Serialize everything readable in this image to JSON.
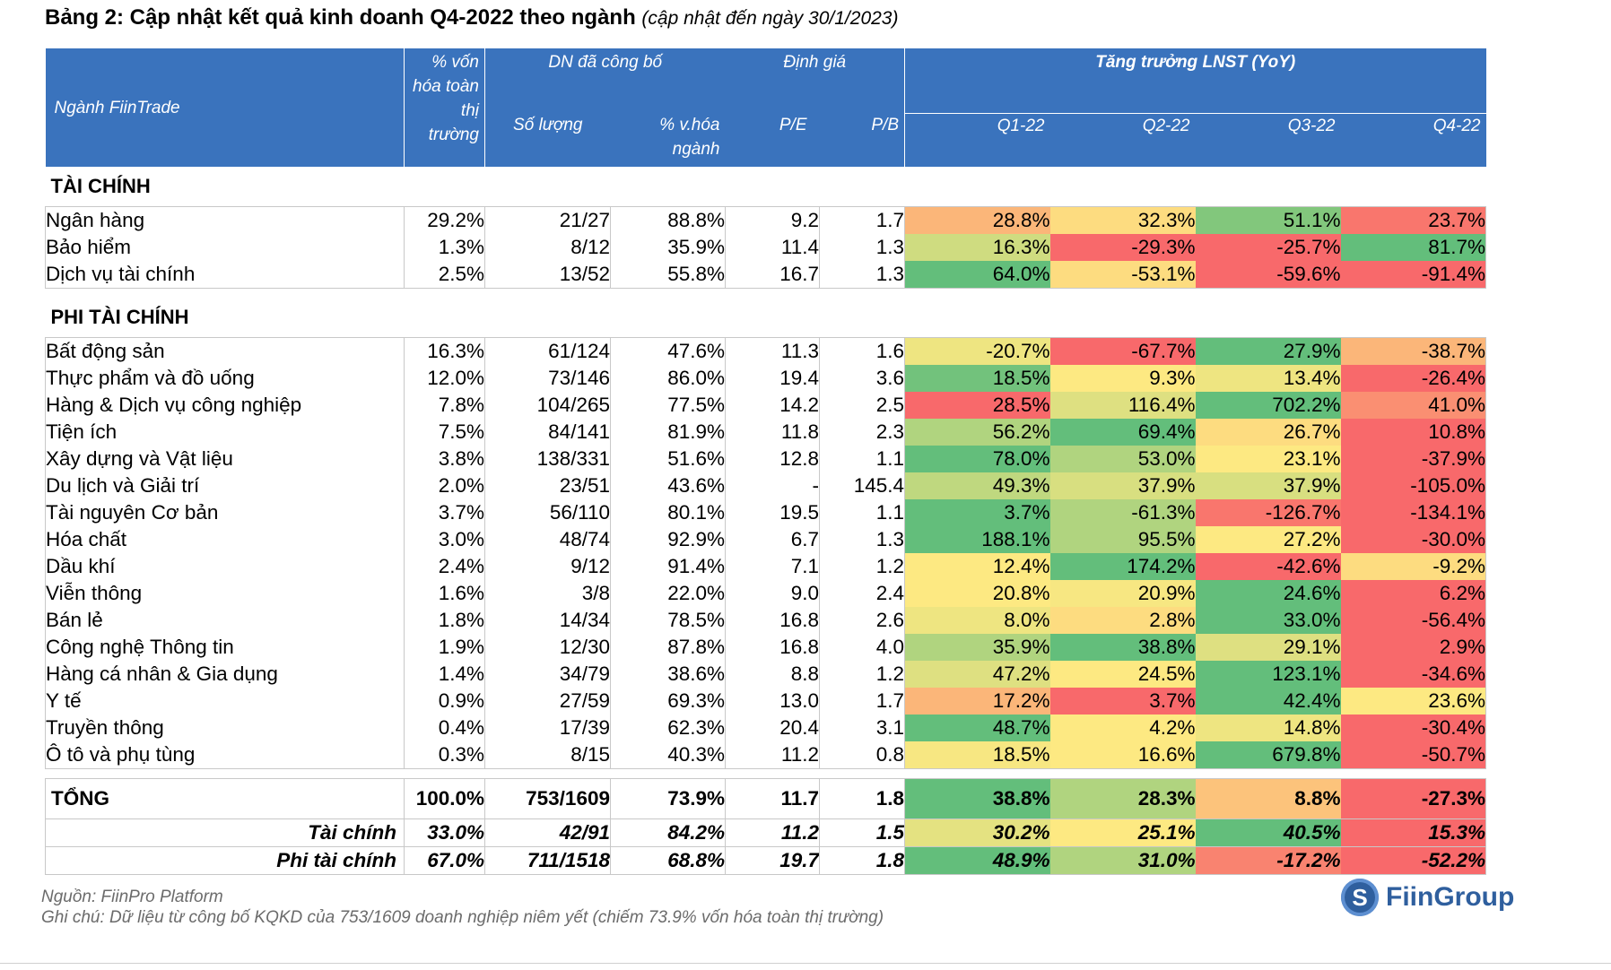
{
  "title": {
    "main": "Bảng 2: Cập nhật kết quả kinh doanh Q4-2022 theo ngành",
    "sub": "(cập nhật đến ngày 30/1/2023)"
  },
  "header": {
    "industry": "Ngành FiinTrade",
    "mcap": "% vốn hóa toàn thị trường",
    "reported": "DN đã công bố",
    "valuation": "Định giá",
    "growth": "Tăng trưởng LNST (YoY)",
    "count": "Số lượng",
    "pct": "% v.hóa ngành",
    "pe": "P/E",
    "pb": "P/B",
    "q1": "Q1-22",
    "q2": "Q2-22",
    "q3": "Q3-22",
    "q4": "Q4-22"
  },
  "colors": {
    "header_bg": "#3a73bd",
    "green": "#63be7b",
    "yellow": "#fde982",
    "red": "#f8696b"
  },
  "sections": [
    {
      "title": "TÀI CHÍNH",
      "rows": [
        {
          "name": "Ngân hàng",
          "mcap": "29.2%",
          "count": "21/27",
          "pct": "88.8%",
          "pe": "9.2",
          "pb": "1.7",
          "q": [
            "28.8%",
            "32.3%",
            "51.1%",
            "23.7%"
          ],
          "qs": [
            0.3,
            0.45,
            0.9,
            0.05
          ]
        },
        {
          "name": "Bảo hiểm",
          "mcap": "1.3%",
          "count": "8/12",
          "pct": "35.9%",
          "pe": "11.4",
          "pb": "1.3",
          "q": [
            "16.3%",
            "-29.3%",
            "-25.7%",
            "81.7%"
          ],
          "qs": [
            0.65,
            0.0,
            0.0,
            1.0
          ]
        },
        {
          "name": "Dịch vụ tài chính",
          "mcap": "2.5%",
          "count": "13/52",
          "pct": "55.8%",
          "pe": "16.7",
          "pb": "1.3",
          "q": [
            "64.0%",
            "-53.1%",
            "-59.6%",
            "-91.4%"
          ],
          "qs": [
            1.0,
            0.45,
            0.0,
            0.0
          ]
        }
      ]
    },
    {
      "title": "PHI TÀI CHÍNH",
      "rows": [
        {
          "name": "Bất động sản",
          "mcap": "16.3%",
          "count": "61/124",
          "pct": "47.6%",
          "pe": "11.3",
          "pb": "1.6",
          "q": [
            "-20.7%",
            "-67.7%",
            "27.9%",
            "-38.7%"
          ],
          "qs": [
            0.55,
            0.0,
            1.0,
            0.3
          ]
        },
        {
          "name": "Thực phẩm và đồ uống",
          "mcap": "12.0%",
          "count": "73/146",
          "pct": "86.0%",
          "pe": "19.4",
          "pb": "3.6",
          "q": [
            "18.5%",
            "9.3%",
            "13.4%",
            "-26.4%"
          ],
          "qs": [
            0.95,
            0.5,
            0.55,
            0.0
          ]
        },
        {
          "name": "Hàng & Dịch vụ công nghiệp",
          "mcap": "7.8%",
          "count": "104/265",
          "pct": "77.5%",
          "pe": "14.2",
          "pb": "2.5",
          "q": [
            "28.5%",
            "116.4%",
            "702.2%",
            "41.0%"
          ],
          "qs": [
            0.0,
            0.6,
            1.0,
            0.15
          ]
        },
        {
          "name": "Tiện ích",
          "mcap": "7.5%",
          "count": "84/141",
          "pct": "81.9%",
          "pe": "11.8",
          "pb": "2.3",
          "q": [
            "56.2%",
            "69.4%",
            "26.7%",
            "10.8%"
          ],
          "qs": [
            0.75,
            1.0,
            0.45,
            0.0
          ]
        },
        {
          "name": "Xây dựng và Vật liệu",
          "mcap": "3.8%",
          "count": "138/331",
          "pct": "51.6%",
          "pe": "12.8",
          "pb": "1.1",
          "q": [
            "78.0%",
            "53.0%",
            "23.1%",
            "-37.9%"
          ],
          "qs": [
            1.0,
            0.75,
            0.5,
            0.0
          ]
        },
        {
          "name": "Du lịch và Giải trí",
          "mcap": "2.0%",
          "count": "23/51",
          "pct": "43.6%",
          "pe": "-",
          "pb": "145.4",
          "q": [
            "49.3%",
            "37.9%",
            "37.9%",
            "-105.0%"
          ],
          "qs": [
            0.7,
            0.62,
            0.62,
            0.0
          ]
        },
        {
          "name": "Tài nguyên Cơ bản",
          "mcap": "3.7%",
          "count": "56/110",
          "pct": "80.1%",
          "pe": "19.5",
          "pb": "1.1",
          "q": [
            "3.7%",
            "-61.3%",
            "-126.7%",
            "-134.1%"
          ],
          "qs": [
            1.0,
            0.75,
            0.05,
            0.0
          ]
        },
        {
          "name": "Hóa chất",
          "mcap": "3.0%",
          "count": "48/74",
          "pct": "92.9%",
          "pe": "6.7",
          "pb": "1.3",
          "q": [
            "188.1%",
            "95.5%",
            "27.2%",
            "-30.0%"
          ],
          "qs": [
            1.0,
            0.75,
            0.5,
            0.0
          ]
        },
        {
          "name": "Dầu khí",
          "mcap": "2.4%",
          "count": "9/12",
          "pct": "91.4%",
          "pe": "7.1",
          "pb": "1.2",
          "q": [
            "12.4%",
            "174.2%",
            "-42.6%",
            "-9.2%"
          ],
          "qs": [
            0.5,
            1.0,
            0.0,
            0.45
          ]
        },
        {
          "name": "Viễn thông",
          "mcap": "1.6%",
          "count": "3/8",
          "pct": "22.0%",
          "pe": "9.0",
          "pb": "2.4",
          "q": [
            "20.8%",
            "20.9%",
            "24.6%",
            "6.2%"
          ],
          "qs": [
            0.5,
            0.52,
            1.0,
            0.0
          ]
        },
        {
          "name": "Bán lẻ",
          "mcap": "1.8%",
          "count": "14/34",
          "pct": "78.5%",
          "pe": "16.8",
          "pb": "2.6",
          "q": [
            "8.0%",
            "2.8%",
            "33.0%",
            "-56.4%"
          ],
          "qs": [
            0.55,
            0.45,
            1.0,
            0.0
          ]
        },
        {
          "name": "Công nghệ Thông tin",
          "mcap": "1.9%",
          "count": "12/30",
          "pct": "87.8%",
          "pe": "16.8",
          "pb": "4.0",
          "q": [
            "35.9%",
            "38.8%",
            "29.1%",
            "2.9%"
          ],
          "qs": [
            0.75,
            1.0,
            0.6,
            0.0
          ]
        },
        {
          "name": "Hàng cá nhân & Gia dụng",
          "mcap": "1.4%",
          "count": "34/79",
          "pct": "38.6%",
          "pe": "8.8",
          "pb": "1.2",
          "q": [
            "47.2%",
            "24.5%",
            "123.1%",
            "-34.6%"
          ],
          "qs": [
            0.6,
            0.5,
            1.0,
            0.0
          ]
        },
        {
          "name": "Y tế",
          "mcap": "0.9%",
          "count": "27/59",
          "pct": "69.3%",
          "pe": "13.0",
          "pb": "1.7",
          "q": [
            "17.2%",
            "3.7%",
            "42.4%",
            "23.6%"
          ],
          "qs": [
            0.3,
            0.0,
            1.0,
            0.5
          ]
        },
        {
          "name": "Truyền thông",
          "mcap": "0.4%",
          "count": "17/39",
          "pct": "62.3%",
          "pe": "20.4",
          "pb": "3.1",
          "q": [
            "48.7%",
            "4.2%",
            "14.8%",
            "-30.4%"
          ],
          "qs": [
            1.0,
            0.5,
            0.55,
            0.0
          ]
        },
        {
          "name": "Ô tô và phụ tùng",
          "mcap": "0.3%",
          "count": "8/15",
          "pct": "40.3%",
          "pe": "11.2",
          "pb": "0.8",
          "q": [
            "18.5%",
            "16.6%",
            "679.8%",
            "-50.7%"
          ],
          "qs": [
            0.52,
            0.5,
            1.0,
            0.0
          ]
        }
      ]
    }
  ],
  "total": {
    "name": "TỔNG",
    "mcap": "100.0%",
    "count": "753/1609",
    "pct": "73.9%",
    "pe": "11.7",
    "pb": "1.8",
    "q": [
      "38.8%",
      "28.3%",
      "8.8%",
      "-27.3%"
    ],
    "qs": [
      1.0,
      0.75,
      0.35,
      0.0
    ]
  },
  "subtotals": [
    {
      "name": "Tài chính",
      "mcap": "33.0%",
      "count": "42/91",
      "pct": "84.2%",
      "pe": "11.2",
      "pb": "1.5",
      "q": [
        "30.2%",
        "25.1%",
        "40.5%",
        "15.3%"
      ],
      "qs": [
        0.58,
        0.5,
        1.0,
        0.0
      ]
    },
    {
      "name": "Phi tài chính",
      "mcap": "67.0%",
      "count": "711/1518",
      "pct": "68.8%",
      "pe": "19.7",
      "pb": "1.8",
      "q": [
        "48.9%",
        "31.0%",
        "-17.2%",
        "-52.2%"
      ],
      "qs": [
        1.0,
        0.75,
        0.1,
        0.0
      ]
    }
  ],
  "footer": {
    "source": "Nguồn: FiinPro Platform",
    "note": "Ghi chú: Dữ liệu từ công bố KQKD của 753/1609 doanh nghiệp niêm yết (chiếm 73.9% vốn hóa toàn thị trường)"
  },
  "logo": {
    "text": "FiinGroup",
    "mark": "S"
  }
}
